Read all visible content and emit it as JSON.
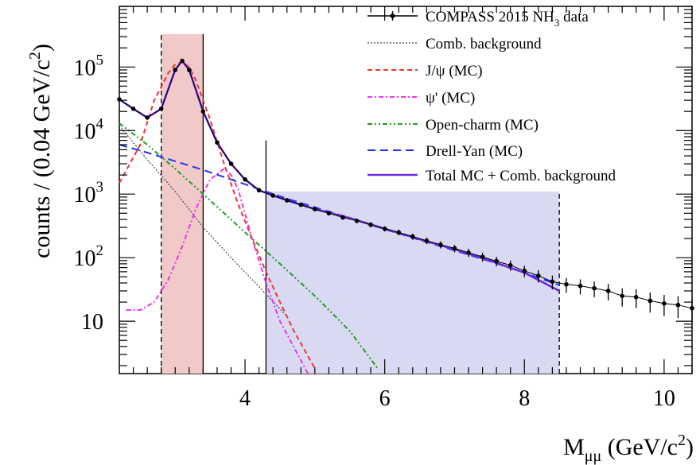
{
  "chart_data": {
    "type": "line",
    "scale_y": "log",
    "xlabel": "M",
    "xlabel_sub": "μμ",
    "xlabel_unit": "(GeV/c",
    "xlabel_unit_sup": "2",
    "xlabel_unit_close": ")",
    "ylabel": "counts / (0.04 GeV/c",
    "ylabel_sup": "2",
    "ylabel_close": ")",
    "xlim": [
      2.2,
      10.4
    ],
    "ylim": [
      1.5,
      900000
    ],
    "x_ticks": [
      4,
      6,
      8,
      10
    ],
    "x_tick_labels": [
      "4",
      "6",
      "8",
      "10"
    ],
    "y_ticks": [
      10,
      100,
      1000,
      10000,
      100000
    ],
    "y_tick_labels": [
      {
        "base": "10",
        "exp": ""
      },
      {
        "base": "10",
        "exp": "2"
      },
      {
        "base": "10",
        "exp": "3"
      },
      {
        "base": "10",
        "exp": "4"
      },
      {
        "base": "10",
        "exp": "5"
      }
    ],
    "legend_position": "top-right",
    "colors": {
      "data": "#000000",
      "comb_bkg": "#444444",
      "jpsi": "#ee3333",
      "psiprime": "#ee33ee",
      "open_charm": "#229922",
      "drell_yan": "#2233ee",
      "total": "#6a28e0",
      "jpsi_window": "#f2c9c9",
      "dy_window": "#d9d9f2"
    },
    "regions": [
      {
        "name": "jpsi-window",
        "x": [
          2.8,
          3.4
        ],
        "y": [
          1.5,
          330000
        ],
        "color": "#f2c9c9"
      },
      {
        "name": "drell-yan-window",
        "x": [
          4.3,
          8.5
        ],
        "y": [
          1.5,
          1100
        ],
        "color": "#d9d9f2"
      }
    ],
    "vlines": [
      {
        "x": 2.8,
        "ymax": 330000,
        "style": "dashed"
      },
      {
        "x": 3.4,
        "ymax": 330000,
        "style": "solid"
      },
      {
        "x": 4.3,
        "ymax": 7000,
        "style": "solid"
      },
      {
        "x": 8.5,
        "ymax": 1100,
        "style": "dashed"
      }
    ],
    "series": [
      {
        "name": "COMPASS 2015 NH",
        "name_sub": "3",
        "name_tail": " data",
        "x": [
          2.2,
          2.4,
          2.6,
          2.8,
          3.0,
          3.1,
          3.2,
          3.4,
          3.6,
          3.8,
          4.0,
          4.2,
          4.4,
          4.6,
          4.8,
          5.0,
          5.2,
          5.4,
          5.6,
          5.8,
          6.0,
          6.2,
          6.4,
          6.6,
          6.8,
          7.0,
          7.2,
          7.4,
          7.6,
          7.8,
          8.0,
          8.2,
          8.4,
          8.6,
          8.8,
          9.0,
          9.2,
          9.4,
          9.6,
          9.8,
          10.0,
          10.2,
          10.4
        ],
        "values": [
          31000,
          22000,
          16000,
          22000,
          90000,
          125000,
          90000,
          20000,
          6500,
          3000,
          1700,
          1150,
          950,
          800,
          680,
          580,
          500,
          430,
          380,
          330,
          285,
          250,
          215,
          185,
          160,
          140,
          120,
          103,
          88,
          76,
          62,
          52,
          42,
          38,
          36,
          33,
          30,
          25,
          24,
          21,
          19,
          18,
          16
        ]
      },
      {
        "name": "Comb. background",
        "x": [
          2.2,
          2.6,
          3.0,
          3.4,
          3.8,
          4.2,
          4.6
        ],
        "values": [
          12000,
          3500,
          1100,
          300,
          100,
          35,
          12
        ]
      },
      {
        "name": "J/ψ (MC)",
        "x": [
          2.2,
          2.5,
          2.7,
          2.9,
          3.0,
          3.1,
          3.2,
          3.3,
          3.5,
          3.7,
          3.9,
          4.1,
          4.3,
          4.5,
          4.7,
          5.0
        ],
        "values": [
          1500,
          6000,
          30000,
          80000,
          110000,
          120000,
          100000,
          60000,
          15000,
          3000,
          700,
          200,
          60,
          20,
          7,
          1.8
        ]
      },
      {
        "name": "ψ' (MC)",
        "x": [
          2.3,
          2.5,
          2.7,
          2.9,
          3.1,
          3.3,
          3.5,
          3.7,
          3.8,
          3.9,
          4.1,
          4.3,
          4.5,
          4.9
        ],
        "values": [
          15,
          15,
          20,
          45,
          150,
          600,
          1700,
          2500,
          2000,
          1200,
          200,
          40,
          10,
          1.5
        ]
      },
      {
        "name": "Open-charm (MC)",
        "x": [
          2.2,
          2.6,
          3.0,
          3.5,
          4.0,
          4.5,
          5.0,
          5.5,
          5.9
        ],
        "values": [
          13000,
          6000,
          2500,
          800,
          250,
          80,
          25,
          7,
          1.8
        ]
      },
      {
        "name": "Drell-Yan (MC)",
        "x": [
          2.2,
          2.6,
          3.0,
          3.4,
          3.8,
          4.2,
          4.6,
          5.0,
          5.5,
          6.0,
          6.5,
          7.0,
          7.5,
          8.0,
          8.5
        ],
        "values": [
          6000,
          4500,
          3300,
          2400,
          1700,
          1200,
          850,
          620,
          420,
          280,
          190,
          130,
          88,
          58,
          37
        ]
      },
      {
        "name": "Total MC + Comb. background",
        "x": [
          2.2,
          2.4,
          2.6,
          2.8,
          3.0,
          3.1,
          3.2,
          3.4,
          3.6,
          3.8,
          4.0,
          4.2,
          4.4,
          4.6,
          4.8,
          5.0,
          5.5,
          6.0,
          6.5,
          7.0,
          7.5,
          8.0,
          8.5
        ],
        "values": [
          31000,
          22000,
          16000,
          22000,
          90000,
          125000,
          90000,
          20000,
          6500,
          3000,
          1700,
          1150,
          950,
          800,
          680,
          580,
          420,
          285,
          195,
          135,
          90,
          58,
          30
        ]
      }
    ]
  }
}
